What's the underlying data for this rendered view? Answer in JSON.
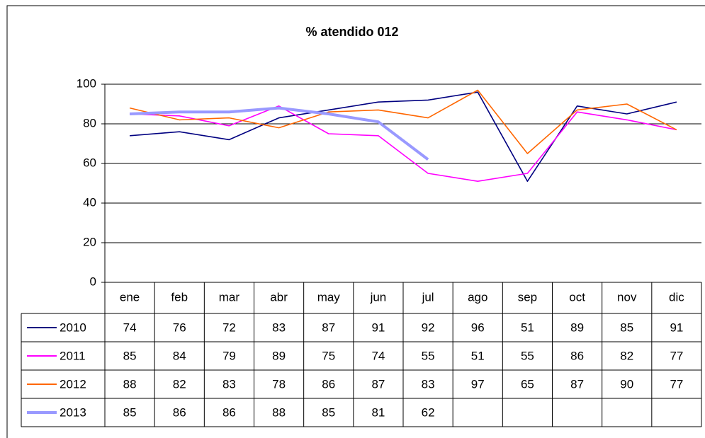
{
  "chart_data": {
    "type": "line",
    "title": "% atendido 012",
    "categories": [
      "ene",
      "feb",
      "mar",
      "abr",
      "may",
      "jun",
      "jul",
      "ago",
      "sep",
      "oct",
      "nov",
      "dic"
    ],
    "series": [
      {
        "name": "2010",
        "color": "#000080",
        "values": [
          74,
          76,
          72,
          83,
          87,
          91,
          92,
          96,
          51,
          89,
          85,
          91
        ]
      },
      {
        "name": "2011",
        "color": "#ff00ff",
        "values": [
          85,
          84,
          79,
          89,
          75,
          74,
          55,
          51,
          55,
          86,
          82,
          77
        ]
      },
      {
        "name": "2012",
        "color": "#ff6600",
        "values": [
          88,
          82,
          83,
          78,
          86,
          87,
          83,
          97,
          65,
          87,
          90,
          77
        ]
      },
      {
        "name": "2013",
        "color": "#9999ff",
        "values": [
          85,
          86,
          86,
          88,
          85,
          81,
          62,
          null,
          null,
          null,
          null,
          null
        ]
      }
    ],
    "ylim": [
      0,
      100
    ],
    "yticks": [
      0,
      20,
      40,
      60,
      80,
      100
    ],
    "grid": true,
    "data_table": true
  }
}
